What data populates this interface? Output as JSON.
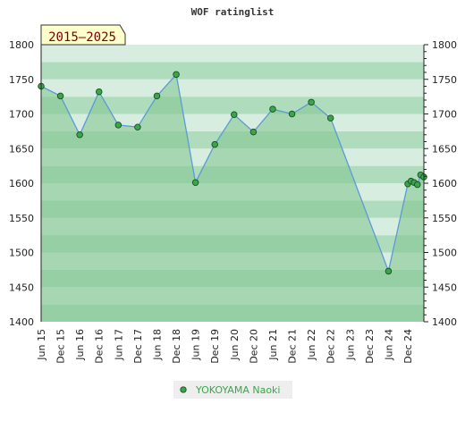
{
  "chart_data": {
    "type": "line",
    "title": "WOF ratinglist",
    "period_badge": "2015–2025",
    "ylim": [
      1400,
      1800
    ],
    "y_ticks": [
      1400,
      1450,
      1500,
      1550,
      1600,
      1650,
      1700,
      1750,
      1800
    ],
    "y_axis_both_sides": true,
    "x_ticks": [
      "Jun 15",
      "Dec 15",
      "Jun 16",
      "Dec 16",
      "Jun 17",
      "Dec 17",
      "Jun 18",
      "Dec 18",
      "Jun 19",
      "Dec 19",
      "Jun 20",
      "Dec 20",
      "Jun 21",
      "Dec 21",
      "Jun 22",
      "Dec 22",
      "Jun 23",
      "Dec 23",
      "Jun 24",
      "Dec 24"
    ],
    "series": [
      {
        "name": "YOKOYAMA Naoki",
        "points": [
          {
            "x": "2015-06",
            "y": 1740
          },
          {
            "x": "2015-12",
            "y": 1726
          },
          {
            "x": "2016-06",
            "y": 1670
          },
          {
            "x": "2016-12",
            "y": 1732
          },
          {
            "x": "2017-06",
            "y": 1684
          },
          {
            "x": "2017-12",
            "y": 1681
          },
          {
            "x": "2018-06",
            "y": 1726
          },
          {
            "x": "2018-12",
            "y": 1757
          },
          {
            "x": "2019-06",
            "y": 1601
          },
          {
            "x": "2019-12",
            "y": 1656
          },
          {
            "x": "2020-06",
            "y": 1699
          },
          {
            "x": "2020-12",
            "y": 1674
          },
          {
            "x": "2021-06",
            "y": 1707
          },
          {
            "x": "2021-12",
            "y": 1700
          },
          {
            "x": "2022-06",
            "y": 1717
          },
          {
            "x": "2022-12",
            "y": 1694
          },
          {
            "x": "2024-06",
            "y": 1473
          },
          {
            "x": "2024-12",
            "y": 1599
          },
          {
            "x": "2025-01",
            "y": 1603
          },
          {
            "x": "2025-02",
            "y": 1601
          },
          {
            "x": "2025-03",
            "y": 1598
          },
          {
            "x": "2025-04",
            "y": 1612
          },
          {
            "x": "2025-05",
            "y": 1609
          }
        ]
      }
    ],
    "colors": {
      "line": "#5b9bd5",
      "area_fill": "#7fc58c",
      "marker_fill": "#3aa64a",
      "marker_stroke": "#1d4d22",
      "badge_bg": "#ffffcc",
      "badge_text": "#7a0000",
      "legend_text": "#3aa64a"
    },
    "legend_position": "bottom-center",
    "grid": "horizontal-bands"
  }
}
